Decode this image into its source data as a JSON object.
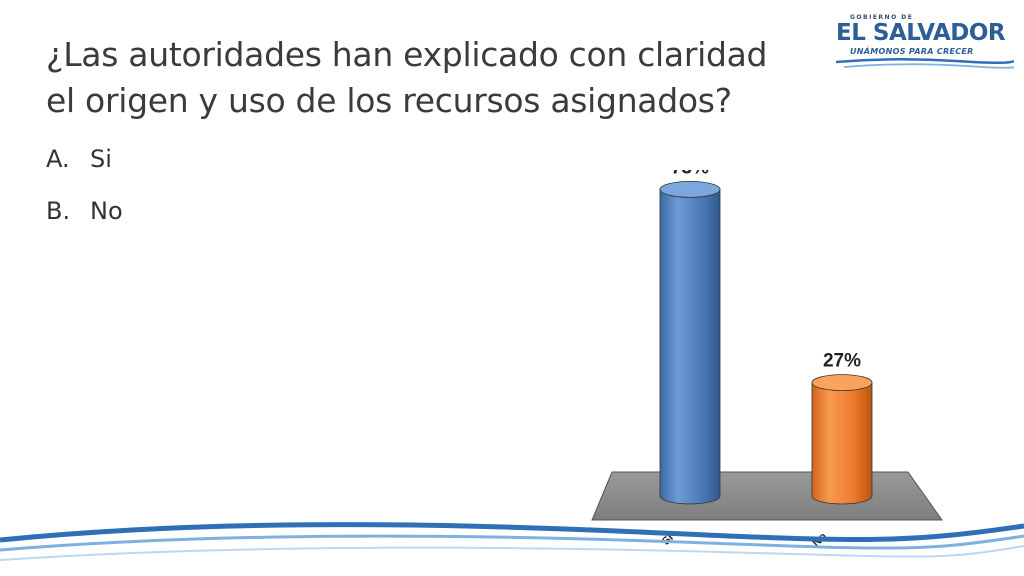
{
  "slide": {
    "title_lines": [
      "¿Las autoridades han explicado con claridad",
      "el origen y uso de los recursos asignados?"
    ],
    "options": [
      {
        "letter": "A.",
        "text": "Si"
      },
      {
        "letter": "B.",
        "text": "No"
      }
    ]
  },
  "logo": {
    "top_text": "GOBIERNO DE",
    "main_text": "EL SALVADOR",
    "sub_text": "UNÁMONOS PARA CRECER"
  },
  "colors": {
    "title": "#3b3b3b",
    "accent_blue": "#4f81bd",
    "accent_orange": "#f07d28",
    "floor": "#8c8c8c",
    "wave": "#2e6fb5"
  },
  "chart_data": {
    "type": "bar",
    "categories": [
      "Si",
      "No"
    ],
    "values": [
      73,
      27
    ],
    "data_labels": [
      "73%",
      "27%"
    ],
    "ylim": [
      0,
      80
    ],
    "colors": [
      "#4f81bd",
      "#f07d28"
    ],
    "style": "3d-cylinder"
  }
}
